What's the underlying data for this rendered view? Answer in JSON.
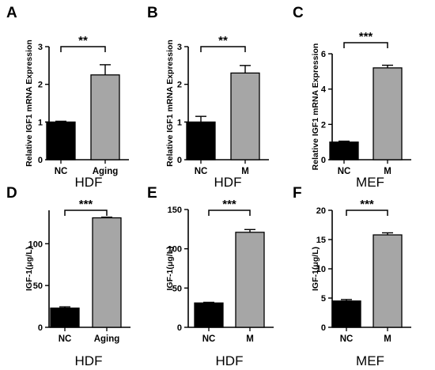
{
  "colors": {
    "NC": "#000000",
    "treated": "#a6a6a6",
    "axis": "#000000"
  },
  "chart_data": [
    {
      "panel": "A",
      "type": "bar",
      "ylabel": "Relative IGF1 mRNA Expression",
      "categories": [
        "NC",
        "Aging"
      ],
      "values": [
        1.0,
        2.25
      ],
      "errors": [
        0.02,
        0.27
      ],
      "ylim": [
        0,
        3
      ],
      "yticks": [
        0,
        1,
        2,
        3
      ],
      "significance": "**",
      "group_label": "HDF"
    },
    {
      "panel": "B",
      "type": "bar",
      "ylabel": "Relative IGF1 mRNA Expression",
      "categories": [
        "NC",
        "M"
      ],
      "values": [
        1.0,
        2.3
      ],
      "errors": [
        0.15,
        0.2
      ],
      "ylim": [
        0,
        3
      ],
      "yticks": [
        0,
        1,
        2,
        3
      ],
      "significance": "**",
      "group_label": "HDF"
    },
    {
      "panel": "C",
      "type": "bar",
      "ylabel": "Relative IGF1 mRNA Expression",
      "categories": [
        "NC",
        "M"
      ],
      "values": [
        1.0,
        5.2
      ],
      "errors": [
        0.05,
        0.15
      ],
      "ylim": [
        0,
        6
      ],
      "yticks": [
        0,
        2,
        4,
        6
      ],
      "significance": "***",
      "group_label": "MEF"
    },
    {
      "panel": "D",
      "type": "bar",
      "ylabel": "IGF-1(μg/L)",
      "categories": [
        "NC",
        "Aging"
      ],
      "values": [
        23,
        131
      ],
      "errors": [
        1.5,
        0.8
      ],
      "ylim": [
        0,
        140
      ],
      "yticks": [
        0,
        50,
        100
      ],
      "significance": "***",
      "group_label": "HDF"
    },
    {
      "panel": "E",
      "type": "bar",
      "ylabel": "IGF-1(μg/L)",
      "categories": [
        "NC",
        "M"
      ],
      "values": [
        31,
        121
      ],
      "errors": [
        0.8,
        3.5
      ],
      "ylim": [
        0,
        150
      ],
      "yticks": [
        0,
        50,
        100,
        150
      ],
      "significance": "***",
      "group_label": "HDF"
    },
    {
      "panel": "F",
      "type": "bar",
      "ylabel": "IGF-1(μg/L)",
      "categories": [
        "NC",
        "M"
      ],
      "values": [
        4.5,
        15.8
      ],
      "errors": [
        0.25,
        0.35
      ],
      "ylim": [
        0,
        20
      ],
      "yticks": [
        0,
        5,
        10,
        15,
        20
      ],
      "significance": "***",
      "group_label": "MEF"
    }
  ]
}
